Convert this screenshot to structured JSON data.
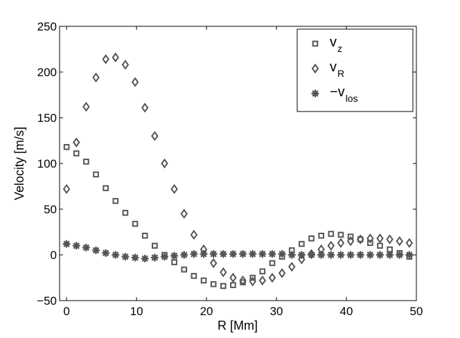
{
  "chart_data": {
    "type": "scatter",
    "title": "",
    "xlabel": "R [Mm]",
    "ylabel": "Velocity [m/s]",
    "xlim": [
      -1,
      50
    ],
    "ylim": [
      -50,
      250
    ],
    "xticks": [
      "0",
      "10",
      "20",
      "30",
      "40",
      "50"
    ],
    "yticks": [
      "−50",
      "0",
      "50",
      "100",
      "150",
      "200",
      "250"
    ],
    "grid": false,
    "legend_position": "top-right",
    "x": [
      0,
      1.4,
      2.8,
      4.2,
      5.6,
      7.0,
      8.4,
      9.8,
      11.2,
      12.6,
      14.0,
      15.4,
      16.8,
      18.2,
      19.6,
      21.0,
      22.4,
      23.8,
      25.2,
      26.6,
      28.0,
      29.4,
      30.8,
      32.2,
      33.6,
      35.0,
      36.4,
      37.8,
      39.2,
      40.6,
      42.0,
      43.4,
      44.8,
      46.2,
      47.6,
      49.0
    ],
    "series": [
      {
        "name": "v_z",
        "label_main": "v",
        "label_sub": "z",
        "marker": "square",
        "color": "#555555",
        "values": [
          118,
          111,
          102,
          88,
          73,
          59,
          46,
          34,
          21,
          10,
          0,
          -8,
          -16,
          -23,
          -28,
          -32,
          -34,
          -33,
          -30,
          -25,
          -18,
          -9,
          -2,
          5,
          12,
          18,
          21,
          23,
          22,
          20,
          17,
          13,
          10,
          6,
          2,
          -2
        ]
      },
      {
        "name": "v_R",
        "label_main": "v",
        "label_sub": "R",
        "marker": "diamond",
        "color": "#555555",
        "values": [
          72,
          123,
          162,
          194,
          214,
          216,
          208,
          189,
          161,
          130,
          100,
          72,
          45,
          22,
          6,
          -9,
          -19,
          -25,
          -28,
          -29,
          -28,
          -25,
          -20,
          -13,
          -5,
          1,
          6,
          10,
          13,
          15,
          17,
          18,
          18,
          17,
          15,
          13
        ]
      },
      {
        "name": "-v_los",
        "label_main": "−v",
        "label_sub": "los",
        "marker": "star",
        "color": "#555555",
        "values": [
          12,
          10,
          8,
          5,
          2,
          0,
          -2,
          -3,
          -4,
          -3,
          -2,
          -1,
          0,
          1,
          1,
          1,
          1,
          1,
          1,
          1,
          1,
          1,
          1,
          0,
          0,
          0,
          0,
          0,
          0,
          0,
          0,
          0,
          0,
          0,
          0,
          0
        ]
      }
    ]
  }
}
